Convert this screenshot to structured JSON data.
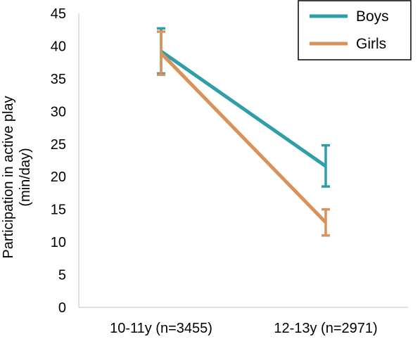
{
  "chart_data": {
    "type": "line",
    "title": "",
    "xlabel": "",
    "ylabel": [
      "Participation in active play",
      "(min/day)"
    ],
    "categories": [
      "10-11y (n=3455)",
      "12-13y (n=2971)"
    ],
    "ylim": [
      0,
      45
    ],
    "yticks": [
      0,
      5,
      10,
      15,
      20,
      25,
      30,
      35,
      40,
      45
    ],
    "grid": false,
    "legend_position": "top-right",
    "series": [
      {
        "name": "Boys",
        "color": "#2e9fa8",
        "values": [
          39.2,
          21.6
        ],
        "error_low": [
          35.8,
          18.5
        ],
        "error_high": [
          42.7,
          24.8
        ]
      },
      {
        "name": "Girls",
        "color": "#d9925a",
        "values": [
          38.9,
          13.0
        ],
        "error_low": [
          35.6,
          11.0
        ],
        "error_high": [
          42.2,
          15.0
        ]
      }
    ]
  }
}
